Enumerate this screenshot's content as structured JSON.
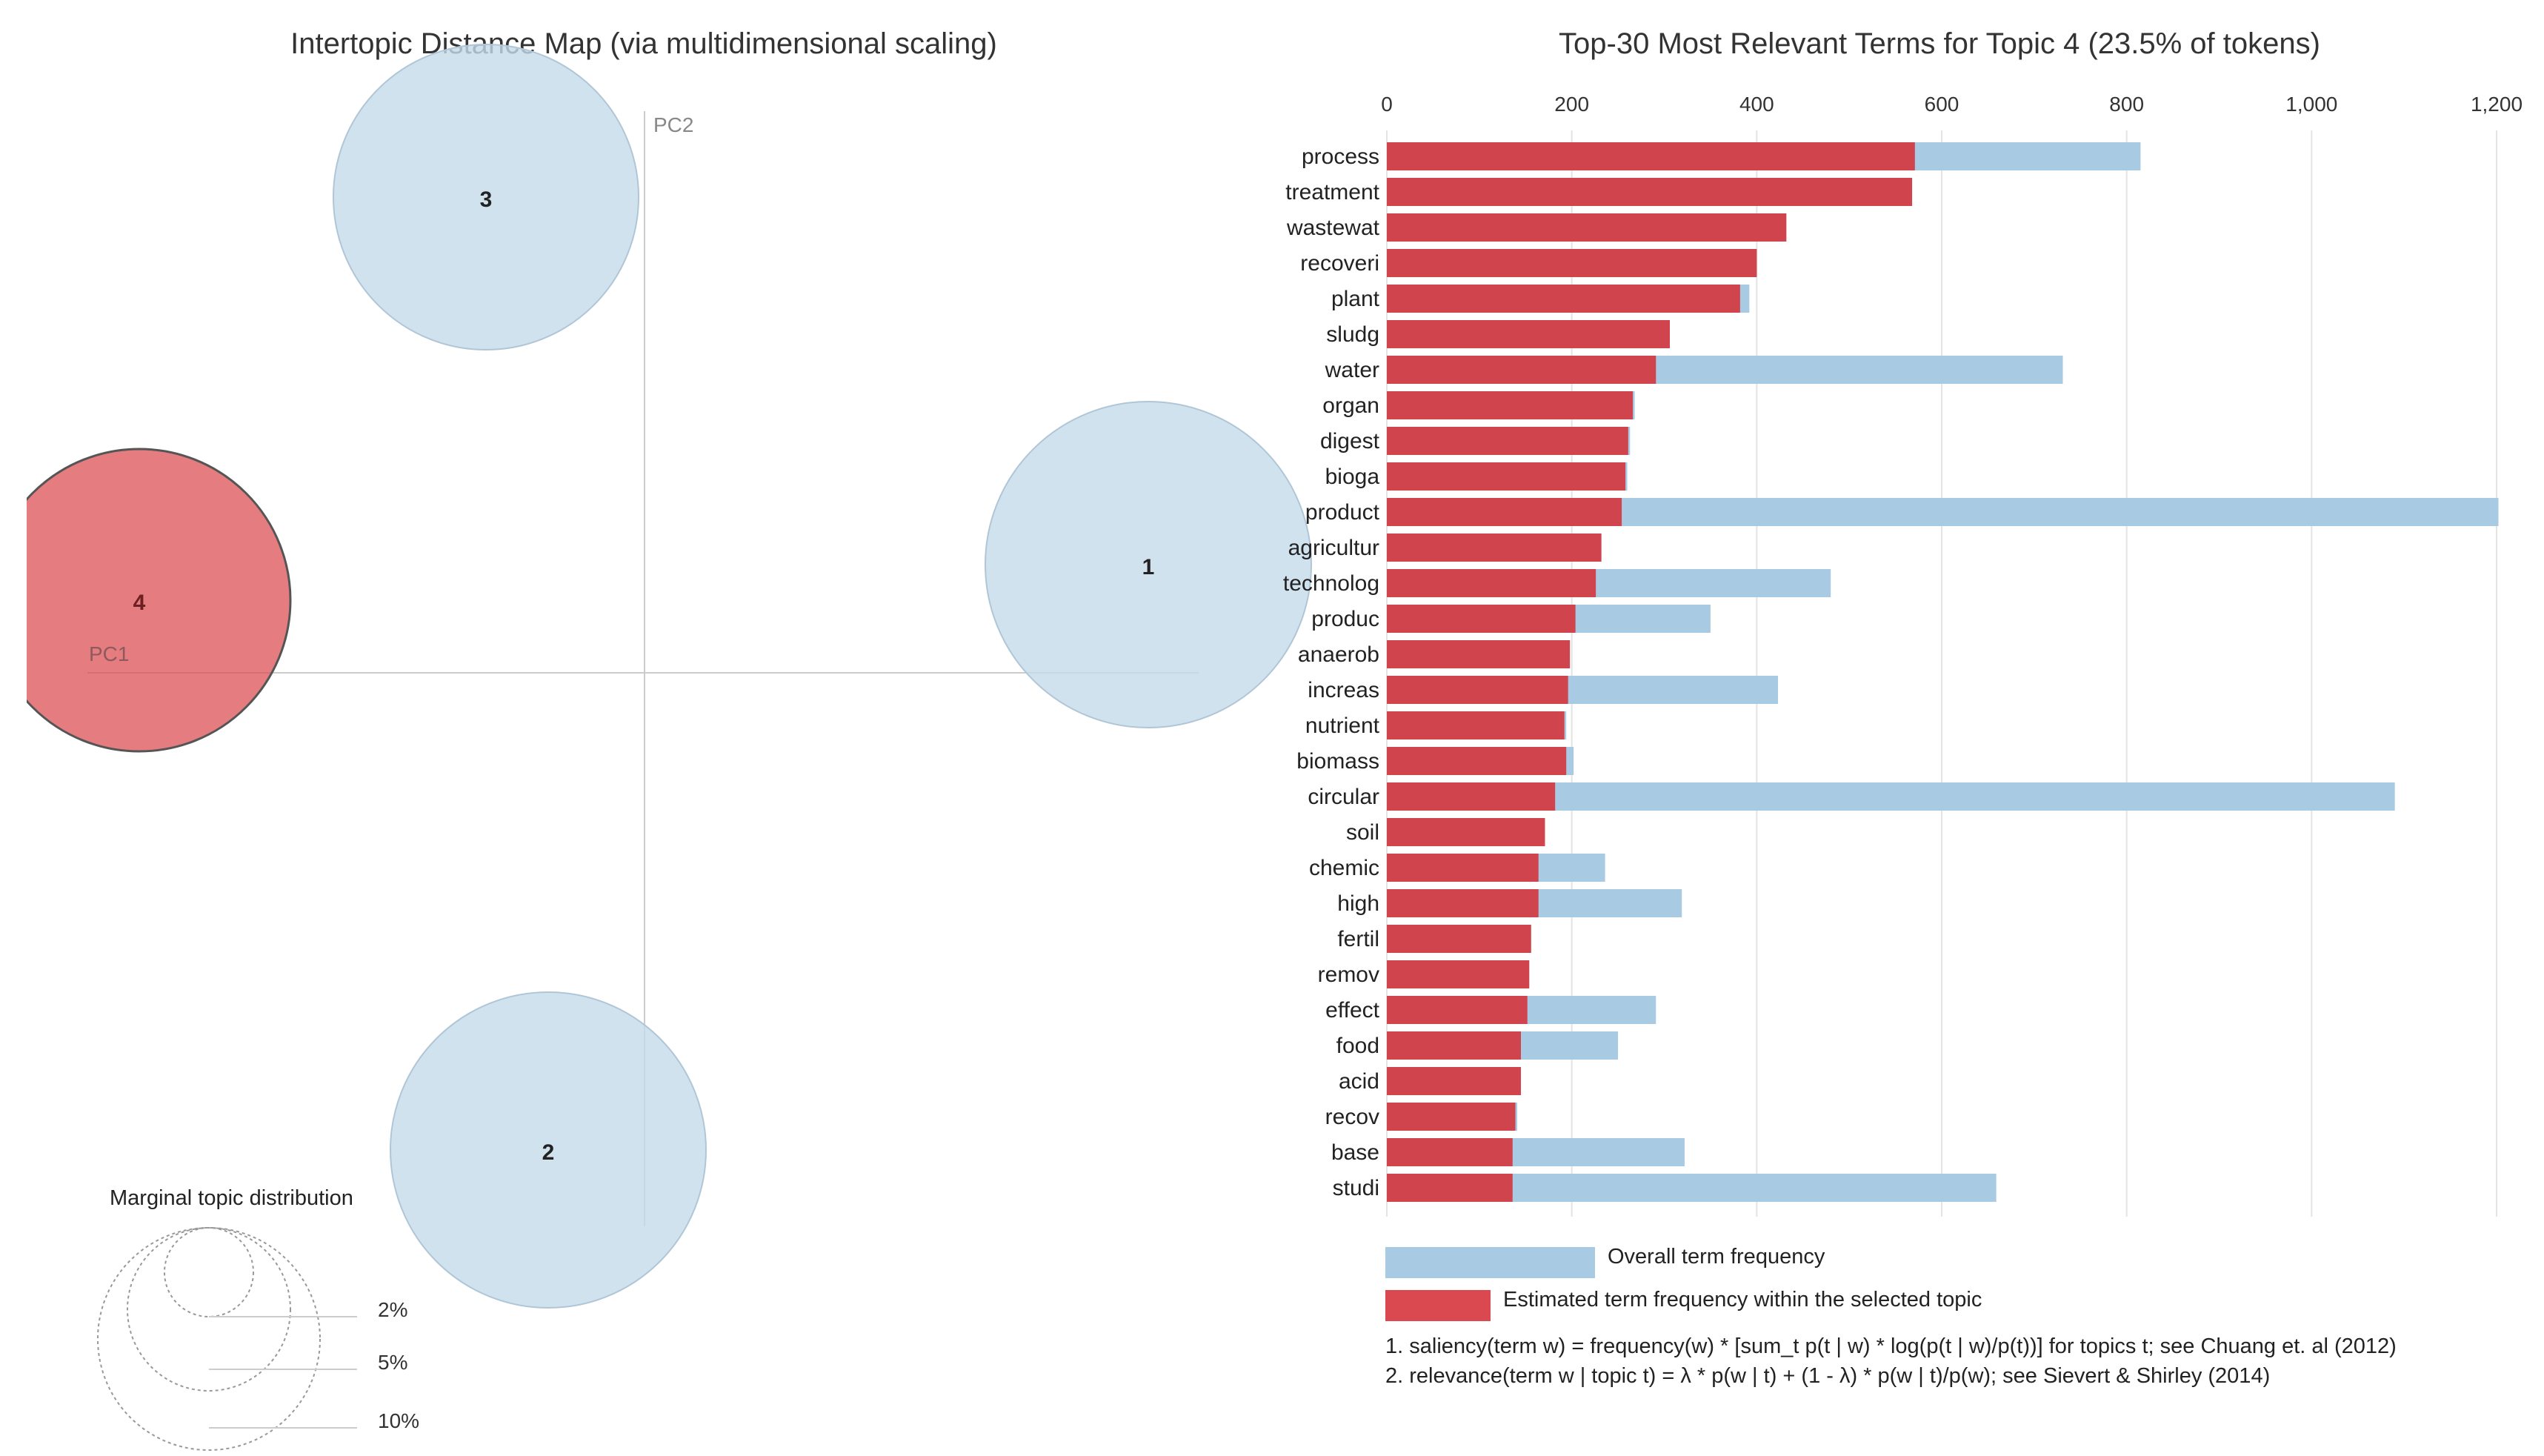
{
  "left_panel": {
    "title": "Intertopic Distance Map (via multidimensional scaling)",
    "axis_pc1": "PC1",
    "axis_pc2": "PC2",
    "topics": [
      {
        "label": "1",
        "selected": false
      },
      {
        "label": "2",
        "selected": false
      },
      {
        "label": "3",
        "selected": false
      },
      {
        "label": "4",
        "selected": true
      }
    ],
    "marginal": {
      "title": "Marginal topic distribution",
      "levels": [
        "2%",
        "5%",
        "10%"
      ]
    }
  },
  "chart_data": {
    "type": "bar",
    "title": "Top-30 Most Relevant Terms for Topic 4 (23.5% of tokens)",
    "orientation": "horizontal",
    "xlim": [
      0,
      1200
    ],
    "xticks": [
      0,
      200,
      400,
      600,
      800,
      1000,
      1200
    ],
    "xtick_labels": [
      "0",
      "200",
      "400",
      "600",
      "800",
      "1,000",
      "1,200"
    ],
    "categories": [
      "process",
      "treatment",
      "wastewat",
      "recoveri",
      "plant",
      "sludg",
      "water",
      "organ",
      "digest",
      "bioga",
      "product",
      "agricultur",
      "technolog",
      "produc",
      "anaerob",
      "increas",
      "nutrient",
      "biomass",
      "circular",
      "soil",
      "chemic",
      "high",
      "fertil",
      "remov",
      "effect",
      "food",
      "acid",
      "recov",
      "base",
      "studi"
    ],
    "series": [
      {
        "name": "Overall term frequency",
        "color": "#a8cbe3",
        "values": [
          815,
          568,
          432,
          400,
          392,
          306,
          731,
          268,
          263,
          260,
          1202,
          232,
          480,
          350,
          198,
          423,
          194,
          202,
          1090,
          171,
          236,
          319,
          156,
          154,
          291,
          250,
          145,
          141,
          322,
          659
        ]
      },
      {
        "name": "Estimated term frequency within the selected topic",
        "color": "#d0444e",
        "values": [
          571,
          568,
          432,
          400,
          382,
          306,
          291,
          266,
          261,
          258,
          254,
          232,
          226,
          204,
          198,
          196,
          192,
          194,
          182,
          171,
          164,
          164,
          156,
          154,
          152,
          145,
          145,
          139,
          136,
          136
        ]
      }
    ]
  },
  "notes": [
    "1. saliency(term w) = frequency(w) * [sum_t p(t | w) * log(p(t | w)/p(t))] for topics t; see Chuang et. al (2012)",
    "2. relevance(term w | topic t) = λ * p(w | t) + (1 - λ) * p(w | t)/p(w); see Sievert & Shirley (2014)"
  ],
  "colors": {
    "bubble_default": "#c6dbeb",
    "bubble_selected": "#d9494f",
    "overall_bar": "#a8cbe3",
    "topic_bar": "#d0444e",
    "grid": "#e4e4e4",
    "axis": "#cfcfcf"
  }
}
